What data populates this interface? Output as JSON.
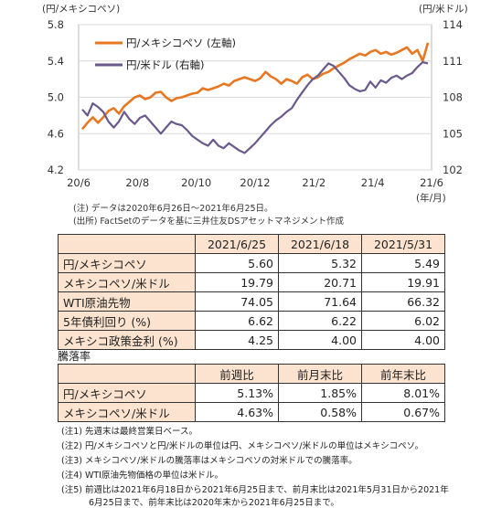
{
  "chart_data": {
    "type": "line",
    "left_axis_unit": "(円/メキシコペソ)",
    "right_axis_unit": "(円/米ドル)",
    "x_unit": "(年/月)",
    "x_ticks": [
      "20/6",
      "20/8",
      "20/10",
      "20/12",
      "21/2",
      "21/4",
      "21/6"
    ],
    "y_left": {
      "min": 4.2,
      "max": 5.8,
      "ticks": [
        "4.2",
        "4.6",
        "5.0",
        "5.4",
        "5.8"
      ]
    },
    "y_right": {
      "min": 102,
      "max": 114,
      "ticks": [
        "102",
        "105",
        "108",
        "111",
        "114"
      ]
    },
    "series": [
      {
        "name": "円/メキシコペソ (左軸)",
        "axis": "left",
        "color": "#E87722",
        "values": [
          4.65,
          4.72,
          4.78,
          4.72,
          4.78,
          4.85,
          4.88,
          4.82,
          4.9,
          4.95,
          5.0,
          5.02,
          4.98,
          5.0,
          5.05,
          5.06,
          5.0,
          4.96,
          4.99,
          5.0,
          5.02,
          5.04,
          5.05,
          5.1,
          5.08,
          5.1,
          5.12,
          5.15,
          5.13,
          5.18,
          5.2,
          5.22,
          5.2,
          5.18,
          5.21,
          5.28,
          5.23,
          5.2,
          5.15,
          5.2,
          5.18,
          5.15,
          5.22,
          5.25,
          5.2,
          5.22,
          5.26,
          5.28,
          5.32,
          5.35,
          5.38,
          5.42,
          5.45,
          5.48,
          5.46,
          5.5,
          5.52,
          5.48,
          5.5,
          5.47,
          5.49,
          5.52,
          5.55,
          5.48,
          5.52,
          5.4,
          5.6
        ]
      },
      {
        "name": "円/米ドル (右軸)",
        "axis": "right",
        "color": "#6A5A8C",
        "values": [
          107.0,
          106.5,
          107.5,
          107.2,
          106.8,
          106.0,
          105.5,
          106.0,
          106.8,
          106.2,
          105.8,
          106.3,
          106.5,
          106.0,
          105.5,
          105.0,
          105.5,
          106.0,
          105.8,
          105.7,
          105.3,
          104.8,
          104.5,
          104.2,
          104.0,
          104.5,
          104.0,
          103.8,
          104.2,
          103.9,
          103.6,
          103.4,
          103.8,
          104.2,
          104.7,
          105.2,
          105.7,
          106.1,
          106.4,
          106.8,
          107.1,
          107.8,
          108.4,
          109.0,
          109.5,
          109.8,
          110.3,
          110.8,
          110.6,
          110.1,
          109.6,
          109.0,
          108.7,
          108.5,
          108.6,
          109.3,
          108.8,
          109.4,
          109.2,
          109.6,
          109.8,
          109.5,
          109.8,
          110.0,
          110.5,
          110.9,
          110.8
        ]
      }
    ]
  },
  "notes": {
    "note1": "(注) データは2020年6月26日～2021年6月25日。",
    "note2": "(出所) FactSetのデータを基に三井住友DSアセットマネジメント作成"
  },
  "table1": {
    "headers": [
      "2021/6/25",
      "2021/6/18",
      "2021/5/31"
    ],
    "rows": [
      {
        "label": "円/メキシコペソ",
        "values": [
          "5.60",
          "5.32",
          "5.49"
        ]
      },
      {
        "label": "メキシコペソ/米ドル",
        "values": [
          "19.79",
          "20.71",
          "19.91"
        ]
      },
      {
        "label": "WTI原油先物",
        "values": [
          "74.05",
          "71.64",
          "66.32"
        ]
      },
      {
        "label": "5年債利回り (%)",
        "values": [
          "6.62",
          "6.22",
          "6.02"
        ]
      },
      {
        "label": "メキシコ政策金利 (%)",
        "values": [
          "4.25",
          "4.00",
          "4.00"
        ]
      }
    ]
  },
  "table2": {
    "title": "騰落率",
    "headers": [
      "前週比",
      "前月末比",
      "前年末比"
    ],
    "rows": [
      {
        "label": "円/メキシコペソ",
        "values": [
          "5.13%",
          "1.85%",
          "8.01%"
        ]
      },
      {
        "label": "メキシコペソ/米ドル",
        "values": [
          "4.63%",
          "0.58%",
          "0.67%"
        ]
      }
    ]
  },
  "footnotes": [
    "(注1) 先週末は最終営業日ベース。",
    "(注2) 円/メキシコペソと円/米ドルの単位は円、メキシコペソ/米ドルの単位はメキシコペソ。",
    "(注3) メキシコペソ/米ドルの騰落率はメキシコペソの対米ドルでの騰落率。",
    "(注4) WTI原油先物価格の単位は米ドル。",
    "(注5) 前週比は2021年6月18日から2021年6月25日まで、前月末比は2021年5月31日から2021年",
    "6月25日まで、前年末比は2020年末から2021年6月25日まで。"
  ]
}
